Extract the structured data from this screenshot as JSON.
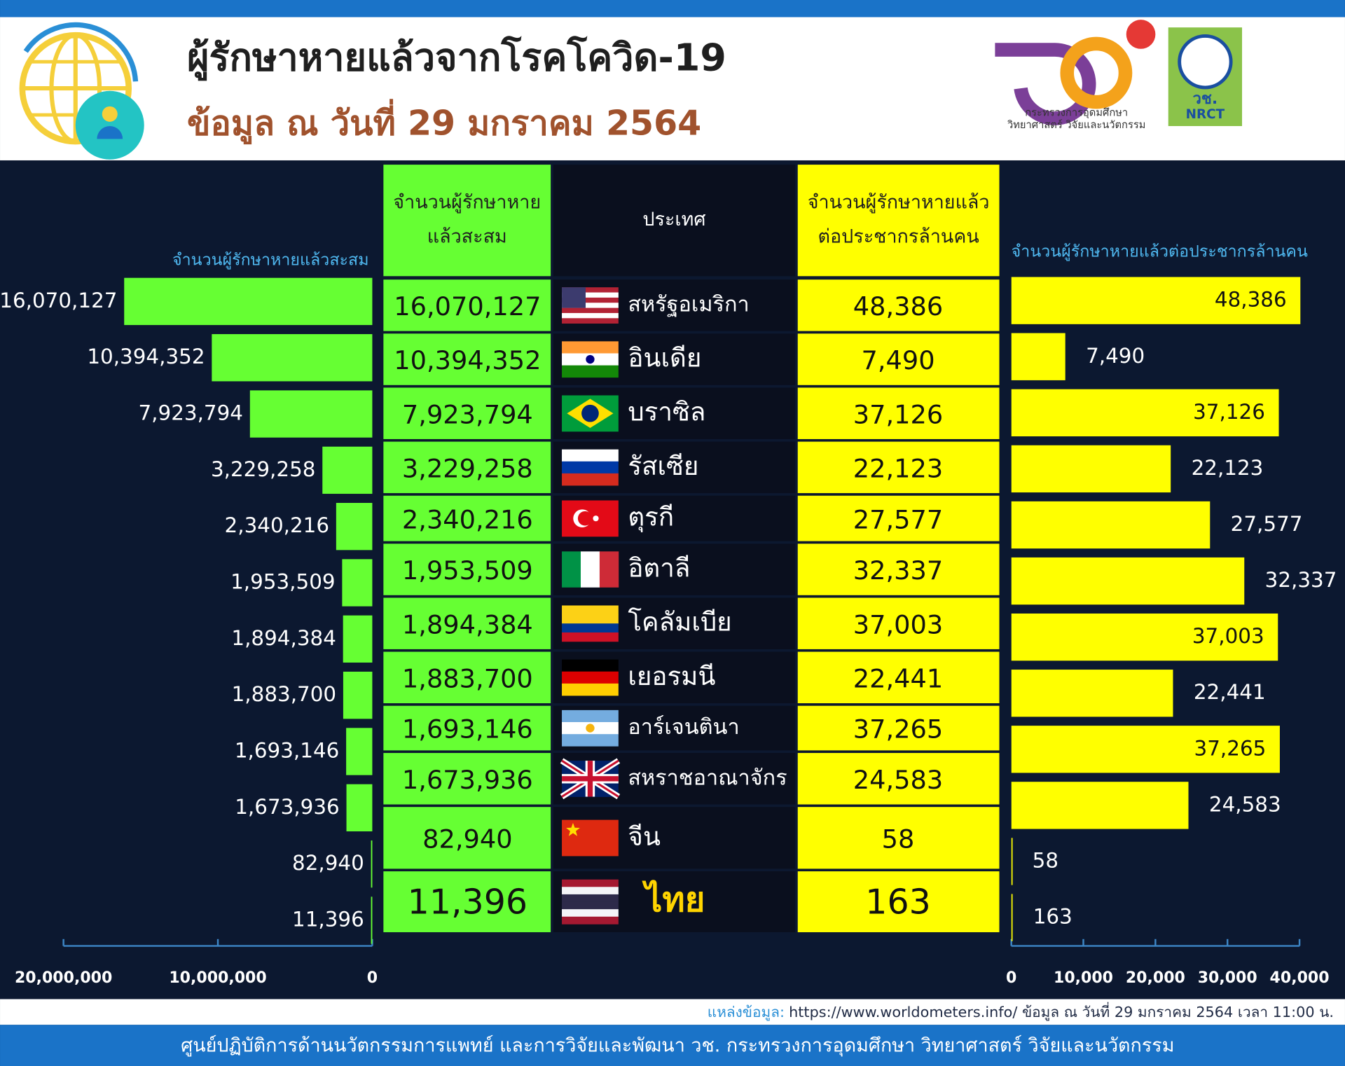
{
  "header": {
    "title": "ผู้รักษาหายแล้วจากโรคโควิด-19",
    "subtitle": "ข้อมูล ณ วันที่ 29 มกราคม 2564"
  },
  "logos": {
    "ministry_lines": [
      "กระทรวงการอุดมศึกษา",
      "วิทยาศาสตร์ วิจัยและนวัตกรรม"
    ],
    "nrct_thai": "วช.",
    "nrct_english": "NRCT"
  },
  "table": {
    "headers": [
      [
        "จำนวนผู้รักษาหาย",
        "แล้วสะสม"
      ],
      [
        "ประเทศ"
      ],
      [
        "จำนวนผู้รักษาหายแล้ว",
        "ต่อประชากรล้านคน"
      ]
    ],
    "rows": [
      [
        "16,070,127",
        "สหรัฐอเมริกา",
        "48,386"
      ],
      [
        "10,394,352",
        "อินเดีย",
        "7,490"
      ],
      [
        "7,923,794",
        "บราซิล",
        "37,126"
      ],
      [
        "3,229,258",
        "รัสเซีย",
        "22,123"
      ],
      [
        "2,340,216",
        "ตุรกี",
        "27,577"
      ],
      [
        "1,953,509",
        "อิตาลี",
        "32,337"
      ],
      [
        "1,894,384",
        "โคลัมเบีย",
        "37,003"
      ],
      [
        "1,883,700",
        "เยอรมนี",
        "22,441"
      ],
      [
        "1,693,146",
        "อาร์เจนตินา",
        "37,265"
      ],
      [
        "1,673,936",
        "สหราชอาณาจักร",
        "24,583"
      ],
      [
        "82,940",
        "จีน",
        "58"
      ],
      [
        "11,396",
        "ไทย",
        "163"
      ]
    ]
  },
  "chart_data": [
    {
      "type": "bar",
      "orientation": "horizontal",
      "x_reversed": true,
      "title": "จำนวนผู้รักษาหายแล้วสะสม",
      "color": "#66ff33",
      "values": [
        16070127,
        10394352,
        7923794,
        3229258,
        2340216,
        1953509,
        1894384,
        1883700,
        1693146,
        1673936,
        82940,
        11396
      ],
      "value_labels": [
        "16,070,127",
        "10,394,352",
        "7,923,794",
        "3,229,258",
        "2,340,216",
        "1,953,509",
        "1,894,384",
        "1,883,700",
        "1,693,146",
        "1,673,936",
        "82,940",
        "11,396"
      ],
      "xlim": [
        0,
        20000000
      ],
      "xticks": [
        {
          "value": 20000000,
          "label": "20,000,000"
        },
        {
          "value": 10000000,
          "label": "10,000,000"
        },
        0
      ]
    },
    {
      "type": "bar",
      "orientation": "horizontal",
      "x_reversed": false,
      "title": "จำนวนผู้รักษาหายแล้วต่อประชากรล้านคน",
      "color": "#ffff00",
      "values": [
        48386,
        7490,
        37126,
        22123,
        27577,
        32337,
        37003,
        22441,
        37265,
        24583,
        58,
        163
      ],
      "value_labels": [
        "48,386",
        "7,490",
        "37,126",
        "22,123",
        "27,577",
        "32,337",
        "37,003",
        "22,441",
        "37,265",
        "24,583",
        "58",
        "163"
      ],
      "xlim": [
        0,
        40000
      ],
      "xticks": [
        0,
        {
          "value": 10000,
          "label": "10,000"
        },
        {
          "value": 20000,
          "label": "20,000"
        },
        {
          "value": 30000,
          "label": "30,000"
        },
        {
          "value": 40000,
          "label": "40,000"
        }
      ]
    }
  ],
  "source": {
    "label": "แหล่งข้อมูล:",
    "text": "https://www.worldometers.info/ ข้อมูล ณ วันที่ 29 มกราคม 2564 เวลา 11:00 น."
  },
  "footer": "ศูนย์ปฏิบัติการด้านนวัตกรรมการแพทย์ และการวิจัยและพัฒนา  วช.   กระทรวงการอุดมศึกษา วิทยาศาสตร์ วิจัยและนวัตกรรม"
}
